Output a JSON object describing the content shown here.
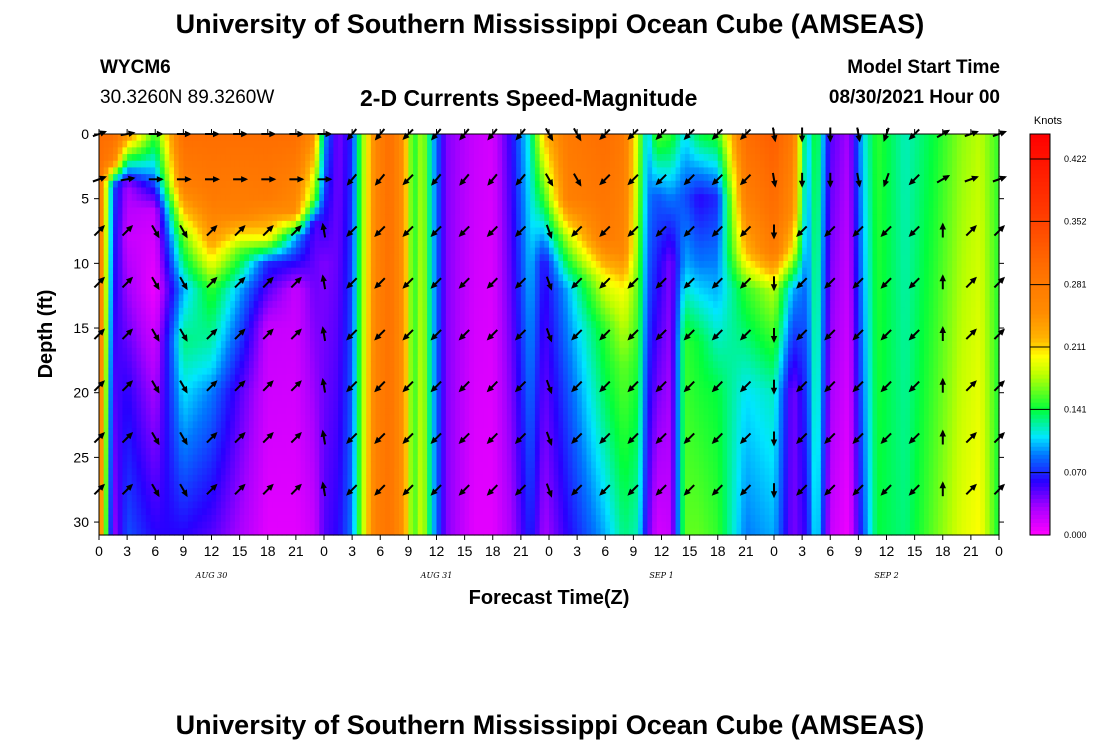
{
  "header": {
    "title_top": "University of Southern Mississippi Ocean Cube (AMSEAS)",
    "title_bottom": "University of Southern Mississippi Ocean Cube (AMSEAS)",
    "station_id": "WYCM6",
    "station_coords": "30.3260N  89.3260W",
    "plot_title": "2-D Currents Speed-Magnitude",
    "model_start_label": "Model Start Time",
    "model_start_value": "08/30/2021 Hour 00"
  },
  "chart_data": {
    "type": "heatmap",
    "title": "2-D Currents Speed-Magnitude",
    "xlabel": "Forecast Time(Z)",
    "ylabel": "Depth (ft)",
    "units": "Knots",
    "x_hours_range": [
      0,
      96
    ],
    "ylim": [
      0,
      31
    ],
    "x_tick_labels": [
      "0",
      "3",
      "6",
      "9",
      "12",
      "15",
      "18",
      "21",
      "0",
      "3",
      "6",
      "9",
      "12",
      "15",
      "18",
      "21",
      "0",
      "3",
      "6",
      "9",
      "12",
      "15",
      "18",
      "21",
      "0",
      "3",
      "6",
      "9",
      "12",
      "15",
      "18",
      "21",
      "0"
    ],
    "y_ticks": [
      0,
      5,
      10,
      15,
      20,
      25,
      30
    ],
    "date_labels": [
      {
        "label": "AUG 30",
        "hour": 12
      },
      {
        "label": "AUG 31",
        "hour": 36
      },
      {
        "label": "SEP 1",
        "hour": 60
      },
      {
        "label": "SEP 2",
        "hour": 84
      }
    ],
    "colorbar": {
      "min": 0.0,
      "max": 0.45,
      "tick_values": [
        0.0,
        0.07,
        0.141,
        0.211,
        0.281,
        0.352,
        0.422
      ],
      "tick_labels": [
        "0.000",
        "0.070",
        "0.141",
        "0.211",
        "0.281",
        "0.352",
        "0.422"
      ]
    },
    "speed_profiles": [
      {
        "hour": 0,
        "profile": [
          [
            0,
            0.3
          ],
          [
            31,
            0.28
          ]
        ]
      },
      {
        "hour": 1.5,
        "profile": [
          [
            0,
            0.3
          ],
          [
            2,
            0.27
          ],
          [
            4,
            0.08
          ],
          [
            31,
            0.03
          ]
        ]
      },
      {
        "hour": 3,
        "profile": [
          [
            0,
            0.25
          ],
          [
            2,
            0.14
          ],
          [
            4,
            0.03
          ],
          [
            8,
            0.02
          ],
          [
            20,
            0.06
          ],
          [
            31,
            0.08
          ]
        ]
      },
      {
        "hour": 6,
        "profile": [
          [
            0,
            0.15
          ],
          [
            3,
            0.1
          ],
          [
            6,
            0.02
          ],
          [
            12,
            0.005
          ],
          [
            20,
            0.03
          ],
          [
            31,
            0.06
          ]
        ]
      },
      {
        "hour": 9,
        "profile": [
          [
            0,
            0.3
          ],
          [
            4,
            0.27
          ],
          [
            8,
            0.16
          ],
          [
            12,
            0.1
          ],
          [
            16,
            0.13
          ],
          [
            20,
            0.11
          ],
          [
            31,
            0.06
          ]
        ]
      },
      {
        "hour": 12,
        "profile": [
          [
            0,
            0.3
          ],
          [
            5,
            0.28
          ],
          [
            8,
            0.24
          ],
          [
            12,
            0.15
          ],
          [
            18,
            0.11
          ],
          [
            20,
            0.09
          ],
          [
            31,
            0.05
          ]
        ]
      },
      {
        "hour": 15,
        "profile": [
          [
            0,
            0.3
          ],
          [
            6,
            0.27
          ],
          [
            9,
            0.16
          ],
          [
            12,
            0.1
          ],
          [
            20,
            0.05
          ],
          [
            31,
            0.03
          ]
        ]
      },
      {
        "hour": 18,
        "profile": [
          [
            0,
            0.3
          ],
          [
            5,
            0.28
          ],
          [
            8,
            0.2
          ],
          [
            10,
            0.07
          ],
          [
            15,
            0.02
          ],
          [
            31,
            0.01
          ]
        ]
      },
      {
        "hour": 21,
        "profile": [
          [
            0,
            0.3
          ],
          [
            6,
            0.25
          ],
          [
            8,
            0.1
          ],
          [
            12,
            0.02
          ],
          [
            31,
            0.01
          ]
        ]
      },
      {
        "hour": 23,
        "profile": [
          [
            0,
            0.25
          ],
          [
            5,
            0.16
          ],
          [
            7,
            0.05
          ],
          [
            31,
            0.02
          ]
        ]
      },
      {
        "hour": 24,
        "profile": [
          [
            0,
            0.1
          ],
          [
            5,
            0.07
          ],
          [
            10,
            0.04
          ],
          [
            31,
            0.05
          ]
        ]
      },
      {
        "hour": 25.5,
        "profile": [
          [
            0,
            0.04
          ],
          [
            31,
            0.06
          ]
        ]
      },
      {
        "hour": 27,
        "profile": [
          [
            0,
            0.07
          ],
          [
            31,
            0.09
          ]
        ]
      },
      {
        "hour": 28,
        "profile": [
          [
            0,
            0.16
          ],
          [
            31,
            0.17
          ]
        ]
      },
      {
        "hour": 29.5,
        "profile": [
          [
            0,
            0.26
          ],
          [
            31,
            0.27
          ]
        ]
      },
      {
        "hour": 31,
        "profile": [
          [
            0,
            0.3
          ],
          [
            31,
            0.29
          ]
        ]
      },
      {
        "hour": 32.5,
        "profile": [
          [
            0,
            0.24
          ],
          [
            31,
            0.24
          ]
        ]
      },
      {
        "hour": 33.5,
        "profile": [
          [
            0,
            0.14
          ],
          [
            31,
            0.15
          ]
        ]
      },
      {
        "hour": 34.5,
        "profile": [
          [
            0,
            0.18
          ],
          [
            31,
            0.19
          ]
        ]
      },
      {
        "hour": 35.5,
        "profile": [
          [
            0,
            0.11
          ],
          [
            31,
            0.11
          ]
        ]
      },
      {
        "hour": 37,
        "profile": [
          [
            0,
            0.04
          ],
          [
            31,
            0.04
          ]
        ]
      },
      {
        "hour": 40,
        "profile": [
          [
            0,
            0.02
          ],
          [
            31,
            0.01
          ]
        ]
      },
      {
        "hour": 42,
        "profile": [
          [
            0,
            0.015
          ],
          [
            31,
            0.01
          ]
        ]
      },
      {
        "hour": 44,
        "profile": [
          [
            0,
            0.06
          ],
          [
            31,
            0.03
          ]
        ]
      },
      {
        "hour": 46,
        "profile": [
          [
            0,
            0.12
          ],
          [
            31,
            0.07
          ]
        ]
      },
      {
        "hour": 47.5,
        "profile": [
          [
            0,
            0.22
          ],
          [
            5,
            0.15
          ],
          [
            10,
            0.06
          ],
          [
            31,
            0.03
          ]
        ]
      },
      {
        "hour": 50,
        "profile": [
          [
            0,
            0.28
          ],
          [
            5,
            0.27
          ],
          [
            8,
            0.18
          ],
          [
            12,
            0.1
          ],
          [
            20,
            0.08
          ],
          [
            31,
            0.06
          ]
        ]
      },
      {
        "hour": 54,
        "profile": [
          [
            0,
            0.3
          ],
          [
            8,
            0.28
          ],
          [
            11,
            0.2
          ],
          [
            15,
            0.15
          ],
          [
            22,
            0.13
          ],
          [
            31,
            0.1
          ]
        ]
      },
      {
        "hour": 56,
        "profile": [
          [
            0,
            0.28
          ],
          [
            9,
            0.26
          ],
          [
            12,
            0.2
          ],
          [
            18,
            0.16
          ],
          [
            31,
            0.13
          ]
        ]
      },
      {
        "hour": 57.5,
        "profile": [
          [
            0,
            0.18
          ],
          [
            31,
            0.12
          ]
        ]
      },
      {
        "hour": 58.5,
        "profile": [
          [
            0,
            0.1
          ],
          [
            31,
            0.05
          ]
        ]
      },
      {
        "hour": 59.5,
        "profile": [
          [
            0,
            0.16
          ],
          [
            5,
            0.08
          ],
          [
            31,
            0.015
          ]
        ]
      },
      {
        "hour": 61,
        "profile": [
          [
            0,
            0.15
          ],
          [
            5,
            0.09
          ],
          [
            10,
            0.04
          ],
          [
            31,
            0.02
          ]
        ]
      },
      {
        "hour": 62.5,
        "profile": [
          [
            0,
            0.11
          ],
          [
            5,
            0.08
          ],
          [
            10,
            0.1
          ],
          [
            16,
            0.15
          ],
          [
            31,
            0.16
          ]
        ]
      },
      {
        "hour": 64,
        "profile": [
          [
            0,
            0.14
          ],
          [
            5,
            0.06
          ],
          [
            10,
            0.09
          ],
          [
            16,
            0.14
          ],
          [
            31,
            0.16
          ]
        ]
      },
      {
        "hour": 66,
        "profile": [
          [
            0,
            0.15
          ],
          [
            5,
            0.07
          ],
          [
            12,
            0.1
          ],
          [
            20,
            0.14
          ],
          [
            31,
            0.15
          ]
        ]
      },
      {
        "hour": 69,
        "profile": [
          [
            0,
            0.3
          ],
          [
            5,
            0.27
          ],
          [
            9,
            0.22
          ],
          [
            12,
            0.15
          ],
          [
            20,
            0.11
          ],
          [
            31,
            0.09
          ]
        ]
      },
      {
        "hour": 72,
        "profile": [
          [
            0,
            0.32
          ],
          [
            6,
            0.3
          ],
          [
            9,
            0.28
          ],
          [
            12,
            0.18
          ],
          [
            20,
            0.12
          ],
          [
            31,
            0.1
          ]
        ]
      },
      {
        "hour": 74,
        "profile": [
          [
            0,
            0.28
          ],
          [
            6,
            0.25
          ],
          [
            9,
            0.2
          ],
          [
            12,
            0.1
          ],
          [
            20,
            0.04
          ],
          [
            31,
            0.04
          ]
        ]
      },
      {
        "hour": 75.5,
        "profile": [
          [
            0,
            0.1
          ],
          [
            31,
            0.06
          ]
        ]
      },
      {
        "hour": 76.5,
        "profile": [
          [
            0,
            0.15
          ],
          [
            31,
            0.12
          ]
        ]
      },
      {
        "hour": 78,
        "profile": [
          [
            0,
            0.05
          ],
          [
            31,
            0.02
          ]
        ]
      },
      {
        "hour": 80,
        "profile": [
          [
            0,
            0.03
          ],
          [
            31,
            0.005
          ]
        ]
      },
      {
        "hour": 81.5,
        "profile": [
          [
            0,
            0.11
          ],
          [
            31,
            0.08
          ]
        ]
      },
      {
        "hour": 83,
        "profile": [
          [
            0,
            0.15
          ],
          [
            31,
            0.14
          ]
        ]
      },
      {
        "hour": 86,
        "profile": [
          [
            0,
            0.12
          ],
          [
            31,
            0.13
          ]
        ]
      },
      {
        "hour": 89,
        "profile": [
          [
            0,
            0.14
          ],
          [
            31,
            0.16
          ]
        ]
      },
      {
        "hour": 92,
        "profile": [
          [
            0,
            0.17
          ],
          [
            31,
            0.19
          ]
        ]
      },
      {
        "hour": 94,
        "profile": [
          [
            0,
            0.18
          ],
          [
            31,
            0.2
          ]
        ]
      },
      {
        "hour": 96,
        "profile": [
          [
            0,
            0.15
          ],
          [
            31,
            0.14
          ]
        ]
      }
    ],
    "vector_depths": [
      0,
      3.5,
      7.5,
      11.5,
      15.5,
      19.5,
      23.5,
      27.5
    ],
    "vector_hours": [
      0,
      3,
      6,
      9,
      12,
      15,
      18,
      21,
      24,
      27,
      30,
      33,
      36,
      39,
      42,
      45,
      48,
      51,
      54,
      57,
      60,
      63,
      66,
      69,
      72,
      75,
      78,
      81,
      84,
      87,
      90,
      93,
      96
    ],
    "vector_direction_deg_by_hour": [
      45,
      45,
      150,
      150,
      45,
      45,
      45,
      45,
      350,
      225,
      225,
      225,
      225,
      225,
      225,
      225,
      160,
      225,
      225,
      225,
      225,
      225,
      225,
      225,
      180,
      225,
      225,
      225,
      225,
      225,
      0,
      45,
      45
    ],
    "vector_direction_deg_surface": [
      70,
      80,
      90,
      90,
      90,
      90,
      90,
      90,
      90,
      220,
      220,
      225,
      220,
      220,
      220,
      220,
      150,
      150,
      225,
      225,
      225,
      225,
      225,
      225,
      170,
      180,
      180,
      170,
      200,
      225,
      60,
      70,
      70
    ]
  }
}
